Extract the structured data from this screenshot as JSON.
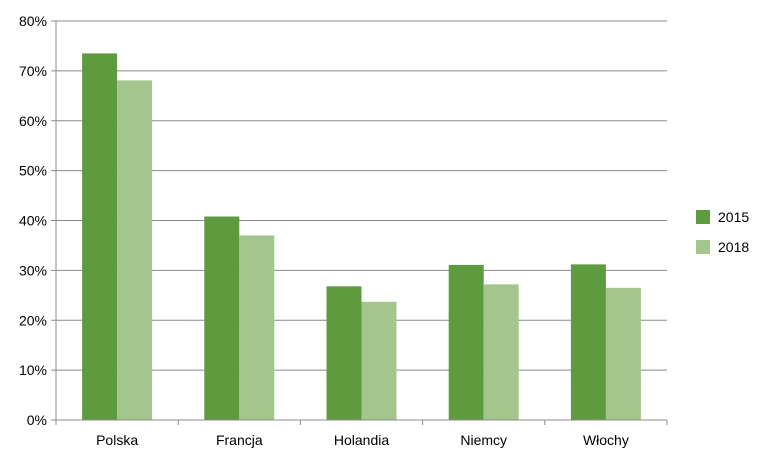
{
  "chart_data": {
    "type": "bar",
    "title": "",
    "xlabel": "",
    "ylabel": "",
    "categories": [
      "Polska",
      "Francja",
      "Holandia",
      "Niemcy",
      "Włochy"
    ],
    "series": [
      {
        "name": "2015",
        "color": "#5E9A3E",
        "values": [
          73.5,
          40.8,
          26.8,
          31.1,
          31.2
        ]
      },
      {
        "name": "2018",
        "color": "#A3C68F",
        "values": [
          68.1,
          37.0,
          23.7,
          27.2,
          26.5
        ]
      }
    ],
    "ylim": [
      0,
      80
    ],
    "yticks": [
      "0%",
      "10%",
      "20%",
      "30%",
      "40%",
      "50%",
      "60%",
      "70%",
      "80%"
    ],
    "grid": true,
    "legend": "right"
  }
}
